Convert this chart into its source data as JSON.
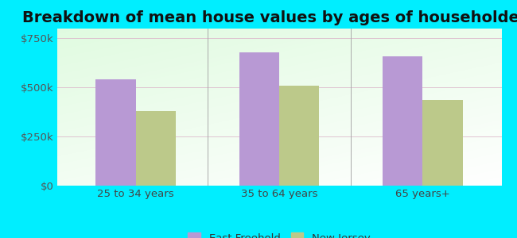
{
  "title": "Breakdown of mean house values by ages of householders",
  "categories": [
    "25 to 34 years",
    "35 to 64 years",
    "65 years+"
  ],
  "east_freehold": [
    540000,
    680000,
    660000
  ],
  "new_jersey": [
    378000,
    510000,
    435000
  ],
  "bar_color_ef": "#b899d4",
  "bar_color_nj": "#bcc98a",
  "background_outer": "#00eeff",
  "ylim": [
    0,
    800000
  ],
  "yticks": [
    0,
    250000,
    500000,
    750000
  ],
  "ytick_labels": [
    "$0",
    "$250k",
    "$500k",
    "$750k"
  ],
  "legend_labels": [
    "East Freehold",
    "New Jersey"
  ],
  "title_fontsize": 14,
  "tick_fontsize": 9.5,
  "legend_fontsize": 9.5,
  "bar_width": 0.28
}
